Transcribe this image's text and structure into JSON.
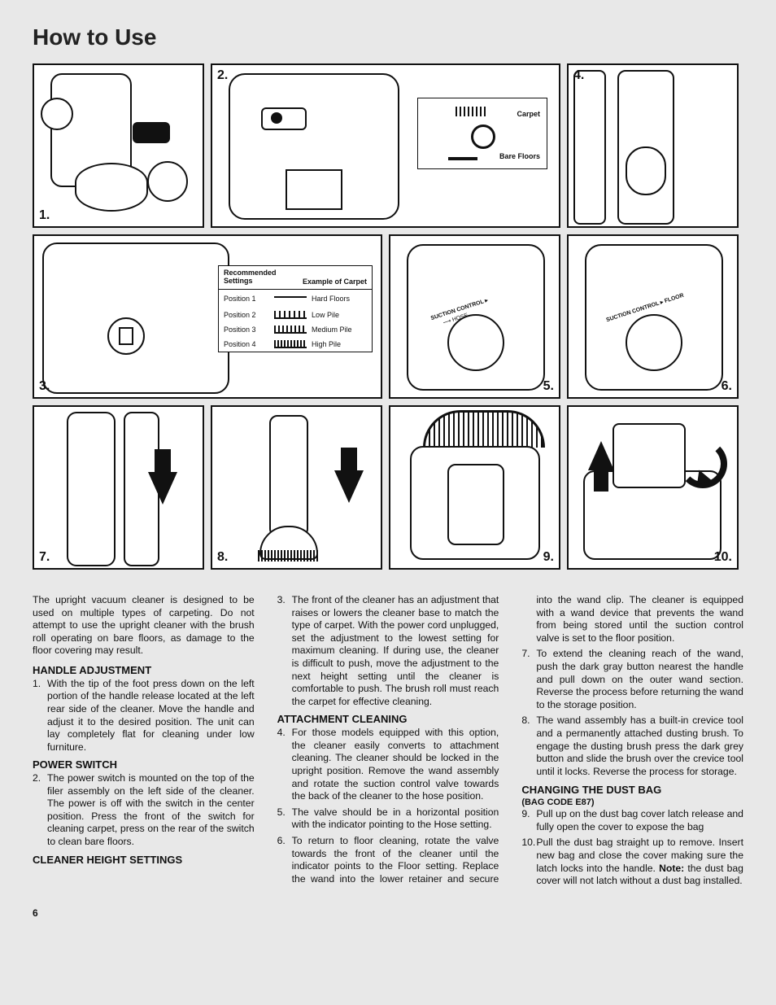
{
  "title": "How to Use",
  "page_number": "6",
  "panels": {
    "p1": "1.",
    "p2": "2.",
    "p3": "3.",
    "p4": "4.",
    "p5": "5.",
    "p6": "6.",
    "p7": "7.",
    "p8": "8.",
    "p9": "9.",
    "p10": "10."
  },
  "panel2_detail": {
    "carpet_label": "Carpet",
    "bare_label": "Bare Floors"
  },
  "settings_table": {
    "header_left": "Recommended Settings",
    "header_right": "Example of Carpet",
    "rows": [
      {
        "pos": "Position 1",
        "carpet": "Hard Floors",
        "pile": "line"
      },
      {
        "pos": "Position 2",
        "carpet": "Low Pile",
        "pile": "low"
      },
      {
        "pos": "Position 3",
        "carpet": "Medium Pile",
        "pile": "med"
      },
      {
        "pos": "Position 4",
        "carpet": "High Pile",
        "pile": "high"
      }
    ]
  },
  "intro": "The upright vacuum cleaner is designed to be used on multiple types of carpeting. Do not attempt to use the upright cleaner with the brush roll operating on bare floors, as damage to the floor covering may result.",
  "sections": {
    "handle": {
      "heading": "HANDLE ADJUSTMENT",
      "items": [
        {
          "n": "1.",
          "t": "With the tip of the foot press down on the left portion of the handle release located at the left rear side of the cleaner. Move the handle and adjust it to the desired position. The unit can lay completely flat for cleaning under low furniture."
        }
      ]
    },
    "power": {
      "heading": "POWER SWITCH",
      "items": [
        {
          "n": "2.",
          "t": "The power switch is mounted on the top of the filer assembly on the left side of the cleaner. The power is off with the switch in the center position.  Press the front of the switch for cleaning carpet, press on the rear of the switch to clean bare floors."
        }
      ]
    },
    "height": {
      "heading": "CLEANER HEIGHT SETTINGS",
      "items": [
        {
          "n": "3.",
          "t": "The front of the cleaner has an adjustment that raises or lowers the cleaner base to match the type of carpet. With the power cord unplugged, set the adjustment to the lowest setting for maximum cleaning. If during use, the cleaner is difficult to push, move the adjustment to the next height setting until the cleaner is comfortable to push. The brush roll must reach the carpet for effective cleaning."
        }
      ]
    },
    "attach": {
      "heading": "ATTACHMENT CLEANING",
      "items": [
        {
          "n": "4.",
          "t": "For those models equipped with this option, the cleaner easily converts to attachment cleaning. The cleaner should be locked in the upright position. Remove the wand assembly and rotate the suction control valve towards the back of the cleaner to the hose position."
        },
        {
          "n": "5.",
          "t": "The valve should be in a horizontal position with the indicator pointing to the Hose setting."
        },
        {
          "n": "6.",
          "t": "To return to floor cleaning, rotate the valve towards the front of the cleaner until the indicator points to the Floor setting. Replace the wand into the lower retainer and secure into the wand clip.  The cleaner is equipped with a wand device that prevents the wand from being stored until the suction control valve is set to the floor position."
        },
        {
          "n": "7.",
          "t": "To extend the cleaning reach of the wand, push the dark gray button nearest the handle and pull down on the outer wand section. Reverse the process before returning the wand to the storage position."
        },
        {
          "n": "8.",
          "t": "The wand assembly has a built-in crevice tool and a permanently attached dusting brush. To engage the dusting brush press the dark grey button and slide the brush over the crevice tool until it locks. Reverse the process for storage."
        }
      ]
    },
    "bag": {
      "heading": "CHANGING THE DUST BAG",
      "sub": "(BAG CODE E87)",
      "items": [
        {
          "n": "9.",
          "t": "Pull up on the dust bag cover latch release and fully open the cover to expose the bag"
        },
        {
          "n": "10.",
          "t": "Pull the dust bag straight up to remove. Insert new bag and close the cover making sure the latch locks into the handle. <b>Note:</b> the dust bag cover will not latch without a dust bag installed."
        }
      ]
    }
  }
}
